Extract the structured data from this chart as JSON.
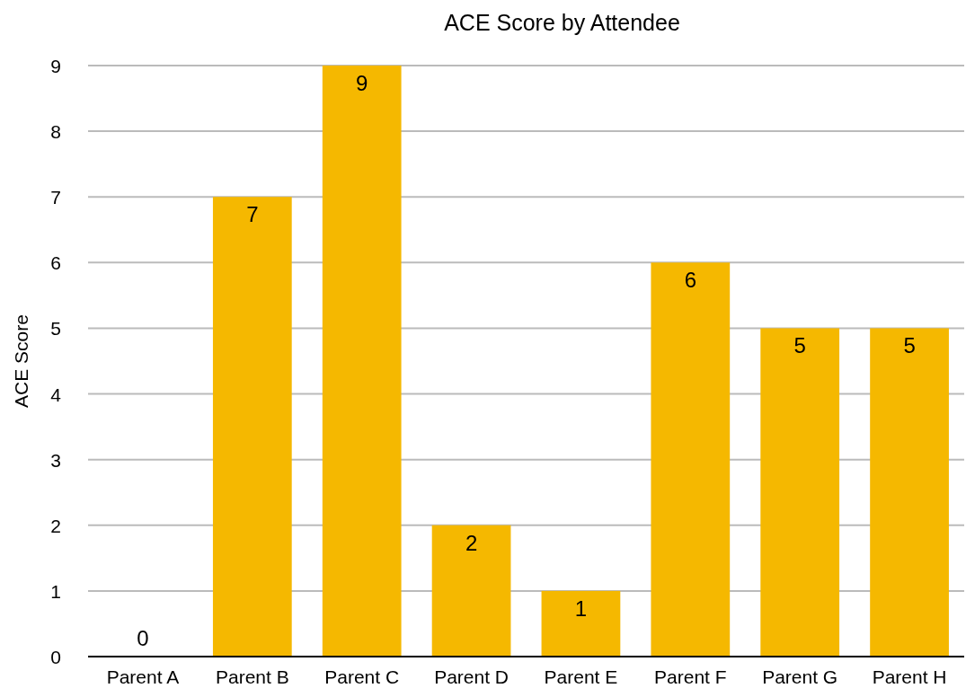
{
  "chart_data": {
    "type": "bar",
    "title": "ACE Score by Attendee",
    "ylabel": "ACE Score",
    "categories": [
      "Parent A",
      "Parent B",
      "Parent C",
      "Parent D",
      "Parent E",
      "Parent F",
      "Parent G",
      "Parent H"
    ],
    "values": [
      0,
      7,
      9,
      2,
      1,
      6,
      5,
      5
    ],
    "color": "#f5b800",
    "ylim": [
      0,
      9
    ],
    "yticks": [
      0,
      1,
      2,
      3,
      4,
      5,
      6,
      7,
      8,
      9
    ],
    "grid": "y",
    "data_labels": true
  }
}
